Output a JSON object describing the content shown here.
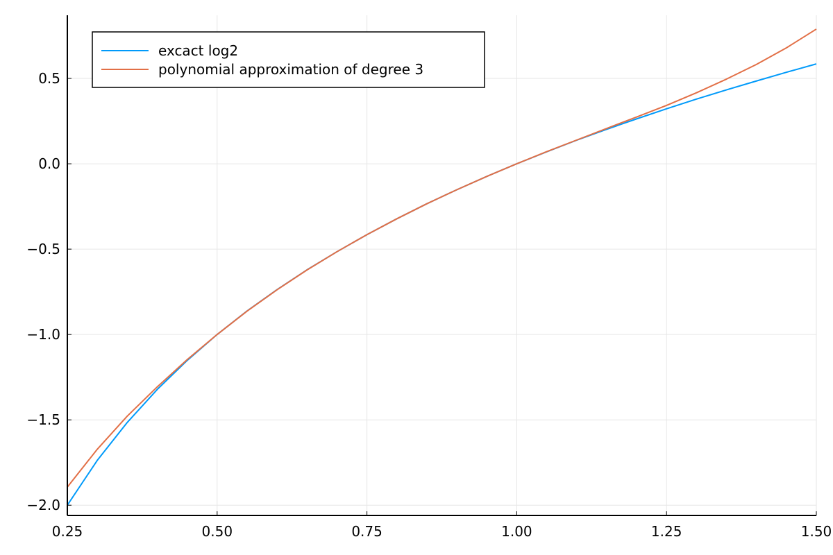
{
  "chart_data": {
    "type": "line",
    "title": "",
    "xlabel": "",
    "ylabel": "",
    "xlim": [
      0.25,
      1.5
    ],
    "ylim": [
      -2.06,
      0.87
    ],
    "grid": true,
    "legend_position": "top-left",
    "x_ticks": [
      0.25,
      0.5,
      0.75,
      1.0,
      1.25,
      1.5
    ],
    "x_tick_labels": [
      "0.25",
      "0.50",
      "0.75",
      "1.00",
      "1.25",
      "1.50"
    ],
    "y_ticks": [
      -2.0,
      -1.5,
      -1.0,
      -0.5,
      0.0,
      0.5
    ],
    "y_tick_labels": [
      "−2.0",
      "−1.5",
      "−1.0",
      "−0.5",
      "0.0",
      "0.5"
    ],
    "x": [
      0.25,
      0.3,
      0.35,
      0.4,
      0.45,
      0.5,
      0.55,
      0.6,
      0.65,
      0.7,
      0.75,
      0.8,
      0.85,
      0.9,
      0.95,
      1.0,
      1.05,
      1.1,
      1.15,
      1.2,
      1.25,
      1.3,
      1.35,
      1.4,
      1.45,
      1.5
    ],
    "series": [
      {
        "name": "excact log2",
        "color": "#009AFA",
        "values": [
          -2.0,
          -1.737,
          -1.515,
          -1.322,
          -1.152,
          -1.0,
          -0.862,
          -0.737,
          -0.621,
          -0.515,
          -0.415,
          -0.322,
          -0.234,
          -0.152,
          -0.074,
          0.0,
          0.07,
          0.138,
          0.202,
          0.263,
          0.322,
          0.379,
          0.433,
          0.485,
          0.536,
          0.585
        ]
      },
      {
        "name": "polynomial approximation of degree 3",
        "color": "#E26F46",
        "values": [
          -1.894,
          -1.672,
          -1.478,
          -1.307,
          -1.147,
          -1.0,
          -0.863,
          -0.738,
          -0.622,
          -0.515,
          -0.415,
          -0.322,
          -0.234,
          -0.152,
          -0.074,
          0.0,
          0.071,
          0.139,
          0.207,
          0.274,
          0.342,
          0.416,
          0.496,
          0.582,
          0.679,
          0.789
        ]
      }
    ]
  }
}
